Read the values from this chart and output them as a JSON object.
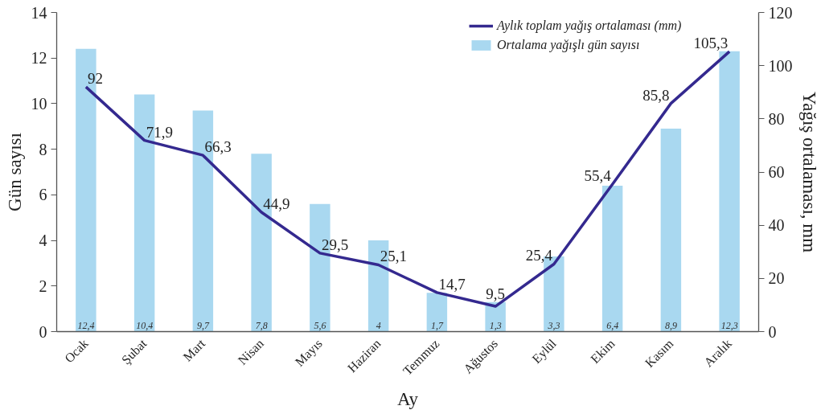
{
  "chart_data": {
    "type": "bar",
    "xlabel": "Ay",
    "ylabel": "Gün sayısı",
    "y2label": "Yağış ortalaması, mm",
    "categories": [
      "Ocak",
      "Şubat",
      "Mart",
      "Nisan",
      "Mayıs",
      "Haziran",
      "Temmuz",
      "Ağustos",
      "Eylül",
      "Ekim",
      "Kasım",
      "Aralık"
    ],
    "ylim": [
      0,
      14
    ],
    "yticks": [
      0,
      2,
      4,
      6,
      8,
      10,
      12,
      14
    ],
    "y2lim": [
      0,
      120
    ],
    "y2ticks": [
      0,
      20,
      40,
      60,
      80,
      100,
      120
    ],
    "grid": false,
    "legend": "top right",
    "series": [
      {
        "name": "Aylık toplam yağış ortalaması (mm)",
        "type": "line",
        "axis": "y2",
        "color": "#34298f",
        "values": [
          92,
          71.9,
          66.3,
          44.9,
          29.5,
          25.1,
          14.7,
          9.5,
          25.4,
          55.4,
          85.8,
          105.3
        ],
        "value_labels": [
          "92",
          "71,9",
          "66,3",
          "44,9",
          "29,5",
          "25,1",
          "14,7",
          "9,5",
          "25,4",
          "55,4",
          "85,8",
          "105,3"
        ]
      },
      {
        "name": "Ortalama yağışlı gün sayısı",
        "color": "#a9d8f0",
        "values": [
          12.4,
          10.4,
          9.7,
          7.8,
          5.6,
          4,
          1.7,
          1.3,
          3.3,
          6.4,
          8.9,
          12.3
        ],
        "value_labels": [
          "12,4",
          "10,4",
          "9,7",
          "7,8",
          "5,6",
          "4",
          "1,7",
          "1,3",
          "3,3",
          "6,4",
          "8,9",
          "12,3"
        ]
      }
    ]
  }
}
